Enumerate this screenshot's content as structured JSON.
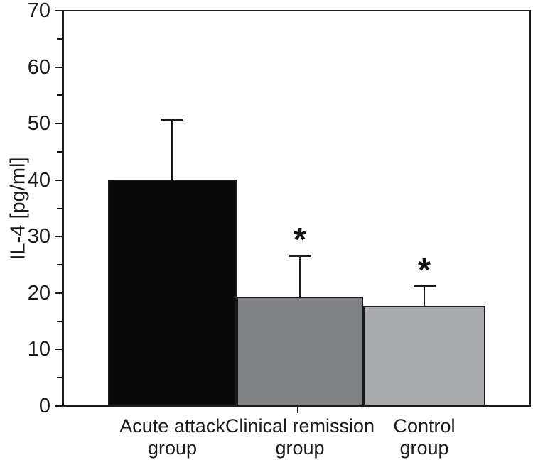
{
  "chart_data": {
    "type": "bar",
    "title": "",
    "ylabel": "IL-4 [pg/ml]",
    "xlabel": "",
    "ylim": [
      0,
      70
    ],
    "ytick_major_step": 10,
    "ytick_minor_step": 5,
    "ytick_labels": [
      "0",
      "10",
      "20",
      "30",
      "40",
      "50",
      "60",
      "70"
    ],
    "grid": false,
    "legend": "none",
    "categories": [
      "Acute attack group",
      "Clinical remission group",
      "Control group"
    ],
    "category_lines": [
      [
        "Acute attack",
        "group"
      ],
      [
        "Clinical remission",
        "group"
      ],
      [
        "Control",
        "group"
      ]
    ],
    "values": [
      40.1,
      19.3,
      17.7
    ],
    "errors_upper": [
      10.6,
      7.3,
      3.6
    ],
    "significance_markers": [
      "",
      "*",
      "*"
    ],
    "bar_colors": [
      "#0a0a0a",
      "#7f8184",
      "#a9abae"
    ],
    "bar_border_color": "#1a1a1a",
    "axis_color": "#1a1a1a",
    "background_color": "#ffffff",
    "x_axis_tick_under_category": "Clinical remission group"
  }
}
